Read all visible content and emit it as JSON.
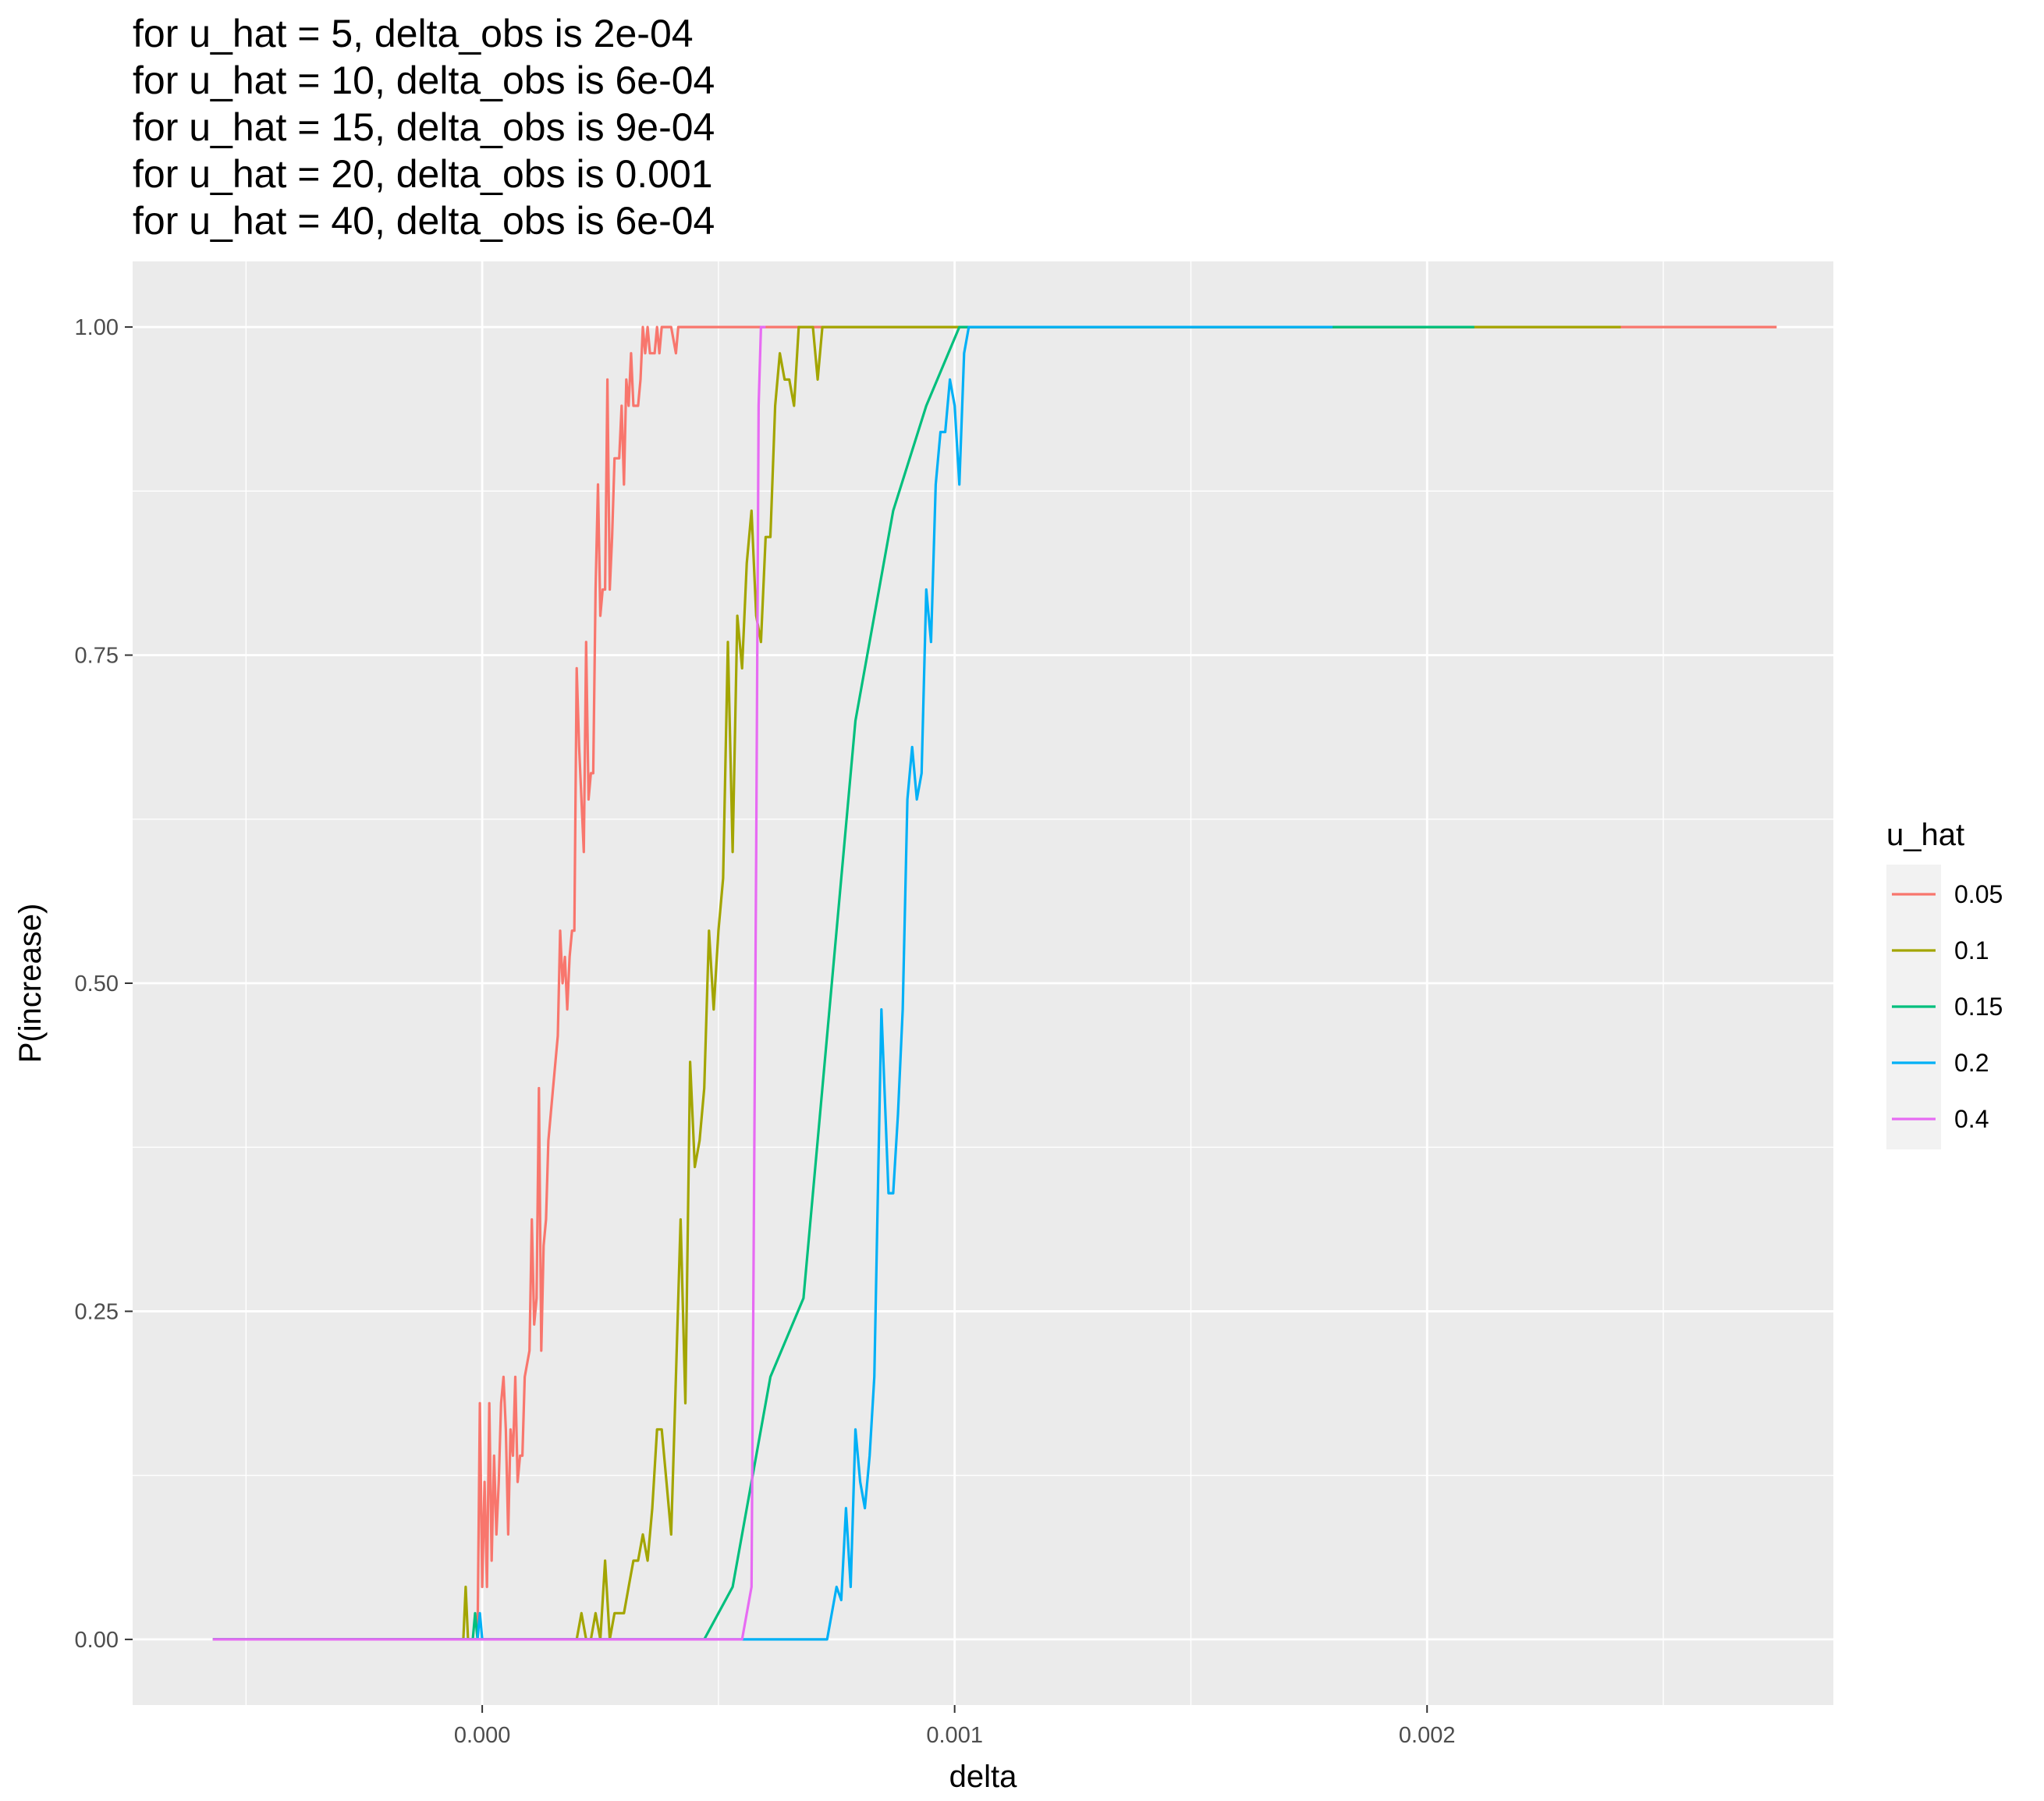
{
  "chart_data": {
    "type": "line",
    "title_lines": [
      "for u_hat = 5,   delta_obs is 2e-04",
      "for u_hat = 10, delta_obs is 6e-04",
      "for u_hat = 15, delta_obs is 9e-04",
      "for u_hat = 20, delta_obs is 0.001",
      "for u_hat = 40, delta_obs is 6e-04"
    ],
    "xlabel": "delta",
    "ylabel": "P(increase)",
    "xlim": [
      -0.00074,
      0.00286
    ],
    "ylim": [
      -0.05,
      1.05
    ],
    "x_ticks": [
      0.0,
      0.001,
      0.002
    ],
    "x_tick_labels": [
      "0.000",
      "0.001",
      "0.002"
    ],
    "y_ticks": [
      0.0,
      0.25,
      0.5,
      0.75,
      1.0
    ],
    "y_tick_labels": [
      "0.00",
      "0.25",
      "0.50",
      "0.75",
      "1.00"
    ],
    "grid": true,
    "legend_title": "u_hat",
    "legend_position": "right",
    "series": [
      {
        "name": "0.05",
        "color": "#F8766D",
        "points": [
          [
            -0.00057,
            0.0
          ],
          [
            -1e-05,
            0.0
          ],
          [
            -5e-06,
            0.18
          ],
          [
            0.0,
            0.04
          ],
          [
            5e-06,
            0.12
          ],
          [
            1e-05,
            0.04
          ],
          [
            1.5e-05,
            0.18
          ],
          [
            2e-05,
            0.06
          ],
          [
            2.5e-05,
            0.14
          ],
          [
            3e-05,
            0.08
          ],
          [
            3.5e-05,
            0.12
          ],
          [
            4e-05,
            0.18
          ],
          [
            4.5e-05,
            0.2
          ],
          [
            5e-05,
            0.16
          ],
          [
            5.5e-05,
            0.08
          ],
          [
            6e-05,
            0.16
          ],
          [
            6.5e-05,
            0.14
          ],
          [
            7e-05,
            0.2
          ],
          [
            7.5e-05,
            0.12
          ],
          [
            8e-05,
            0.14
          ],
          [
            8.5e-05,
            0.14
          ],
          [
            9e-05,
            0.2
          ],
          [
            0.0001,
            0.22
          ],
          [
            0.000105,
            0.32
          ],
          [
            0.00011,
            0.24
          ],
          [
            0.000115,
            0.26
          ],
          [
            0.00012,
            0.42
          ],
          [
            0.000125,
            0.22
          ],
          [
            0.00013,
            0.3
          ],
          [
            0.000135,
            0.32
          ],
          [
            0.00014,
            0.38
          ],
          [
            0.00015,
            0.42
          ],
          [
            0.00016,
            0.46
          ],
          [
            0.000165,
            0.54
          ],
          [
            0.00017,
            0.5
          ],
          [
            0.000175,
            0.52
          ],
          [
            0.00018,
            0.48
          ],
          [
            0.000185,
            0.52
          ],
          [
            0.00019,
            0.54
          ],
          [
            0.000195,
            0.54
          ],
          [
            0.0002,
            0.74
          ],
          [
            0.000205,
            0.68
          ],
          [
            0.00021,
            0.64
          ],
          [
            0.000215,
            0.6
          ],
          [
            0.00022,
            0.76
          ],
          [
            0.000225,
            0.64
          ],
          [
            0.00023,
            0.66
          ],
          [
            0.000235,
            0.66
          ],
          [
            0.00024,
            0.8
          ],
          [
            0.000245,
            0.88
          ],
          [
            0.00025,
            0.78
          ],
          [
            0.000255,
            0.8
          ],
          [
            0.00026,
            0.8
          ],
          [
            0.000265,
            0.96
          ],
          [
            0.00027,
            0.8
          ],
          [
            0.000275,
            0.84
          ],
          [
            0.00028,
            0.9
          ],
          [
            0.000285,
            0.9
          ],
          [
            0.00029,
            0.9
          ],
          [
            0.000295,
            0.94
          ],
          [
            0.0003,
            0.88
          ],
          [
            0.000305,
            0.96
          ],
          [
            0.00031,
            0.94
          ],
          [
            0.000315,
            0.98
          ],
          [
            0.00032,
            0.94
          ],
          [
            0.000325,
            0.94
          ],
          [
            0.00033,
            0.94
          ],
          [
            0.000335,
            0.96
          ],
          [
            0.00034,
            1.0
          ],
          [
            0.000345,
            0.98
          ],
          [
            0.00035,
            1.0
          ],
          [
            0.000355,
            0.98
          ],
          [
            0.00036,
            0.98
          ],
          [
            0.000365,
            0.98
          ],
          [
            0.00037,
            1.0
          ],
          [
            0.000375,
            0.98
          ],
          [
            0.00038,
            1.0
          ],
          [
            0.000385,
            1.0
          ],
          [
            0.00039,
            1.0
          ],
          [
            0.0004,
            1.0
          ],
          [
            0.00041,
            0.98
          ],
          [
            0.000415,
            1.0
          ],
          [
            0.00042,
            1.0
          ],
          [
            0.00274,
            1.0
          ]
        ]
      },
      {
        "name": "0.1",
        "color": "#A3A500",
        "points": [
          [
            -0.00057,
            0.0
          ],
          [
            -4e-05,
            0.0
          ],
          [
            -3.5e-05,
            0.04
          ],
          [
            -3e-05,
            0.0
          ],
          [
            0.0002,
            0.0
          ],
          [
            0.00021,
            0.02
          ],
          [
            0.00022,
            0.0
          ],
          [
            0.00023,
            0.0
          ],
          [
            0.00024,
            0.02
          ],
          [
            0.00025,
            0.0
          ],
          [
            0.00026,
            0.06
          ],
          [
            0.00027,
            0.0
          ],
          [
            0.00028,
            0.02
          ],
          [
            0.0003,
            0.02
          ],
          [
            0.00031,
            0.04
          ],
          [
            0.00032,
            0.06
          ],
          [
            0.00033,
            0.06
          ],
          [
            0.00034,
            0.08
          ],
          [
            0.00035,
            0.06
          ],
          [
            0.00036,
            0.1
          ],
          [
            0.00037,
            0.16
          ],
          [
            0.00038,
            0.16
          ],
          [
            0.00039,
            0.12
          ],
          [
            0.0004,
            0.08
          ],
          [
            0.00041,
            0.2
          ],
          [
            0.00042,
            0.32
          ],
          [
            0.00043,
            0.18
          ],
          [
            0.00044,
            0.44
          ],
          [
            0.00045,
            0.36
          ],
          [
            0.00046,
            0.38
          ],
          [
            0.00047,
            0.42
          ],
          [
            0.00048,
            0.54
          ],
          [
            0.00049,
            0.48
          ],
          [
            0.0005,
            0.54
          ],
          [
            0.00051,
            0.58
          ],
          [
            0.00052,
            0.76
          ],
          [
            0.00053,
            0.6
          ],
          [
            0.00054,
            0.78
          ],
          [
            0.00055,
            0.74
          ],
          [
            0.00056,
            0.82
          ],
          [
            0.00057,
            0.86
          ],
          [
            0.00058,
            0.78
          ],
          [
            0.00059,
            0.76
          ],
          [
            0.0006,
            0.84
          ],
          [
            0.00061,
            0.84
          ],
          [
            0.00062,
            0.94
          ],
          [
            0.00063,
            0.98
          ],
          [
            0.00064,
            0.96
          ],
          [
            0.00065,
            0.96
          ],
          [
            0.00066,
            0.94
          ],
          [
            0.00067,
            1.0
          ],
          [
            0.00068,
            1.0
          ],
          [
            0.00069,
            1.0
          ],
          [
            0.0007,
            1.0
          ],
          [
            0.00071,
            0.96
          ],
          [
            0.00072,
            1.0
          ],
          [
            0.00073,
            1.0
          ],
          [
            0.00241,
            1.0
          ]
        ]
      },
      {
        "name": "0.15",
        "color": "#00BF7D",
        "points": [
          [
            -0.00057,
            0.0
          ],
          [
            -2e-05,
            0.0
          ],
          [
            -1.5e-05,
            0.02
          ],
          [
            -1e-05,
            0.0
          ],
          [
            0.00047,
            0.0
          ],
          [
            0.00053,
            0.04
          ],
          [
            0.00061,
            0.2
          ],
          [
            0.00068,
            0.26
          ],
          [
            0.00079,
            0.7
          ],
          [
            0.00087,
            0.86
          ],
          [
            0.00094,
            0.94
          ],
          [
            0.00101,
            1.0
          ],
          [
            0.0021,
            1.0
          ]
        ]
      },
      {
        "name": "0.2",
        "color": "#00B0F6",
        "points": [
          [
            -0.00057,
            0.0
          ],
          [
            -1e-05,
            0.0
          ],
          [
            -5e-06,
            0.02
          ],
          [
            0.0,
            0.0
          ],
          [
            0.00073,
            0.0
          ],
          [
            0.00075,
            0.04
          ],
          [
            0.00076,
            0.03
          ],
          [
            0.00077,
            0.1
          ],
          [
            0.00078,
            0.04
          ],
          [
            0.00079,
            0.16
          ],
          [
            0.0008,
            0.12
          ],
          [
            0.00081,
            0.1
          ],
          [
            0.00082,
            0.14
          ],
          [
            0.00083,
            0.2
          ],
          [
            0.000845,
            0.48
          ],
          [
            0.00086,
            0.34
          ],
          [
            0.00087,
            0.34
          ],
          [
            0.00088,
            0.4
          ],
          [
            0.00089,
            0.48
          ],
          [
            0.0009,
            0.64
          ],
          [
            0.00091,
            0.68
          ],
          [
            0.00092,
            0.64
          ],
          [
            0.00093,
            0.66
          ],
          [
            0.00094,
            0.8
          ],
          [
            0.00095,
            0.76
          ],
          [
            0.00096,
            0.88
          ],
          [
            0.00097,
            0.92
          ],
          [
            0.00098,
            0.92
          ],
          [
            0.00099,
            0.96
          ],
          [
            0.001,
            0.94
          ],
          [
            0.00101,
            0.88
          ],
          [
            0.00102,
            0.98
          ],
          [
            0.00103,
            1.0
          ],
          [
            0.0018,
            1.0
          ]
        ]
      },
      {
        "name": "0.4",
        "color": "#E76BF3",
        "points": [
          [
            -0.00057,
            0.0
          ],
          [
            0.00055,
            0.0
          ],
          [
            0.00057,
            0.04
          ],
          [
            0.00058,
            0.6
          ],
          [
            0.000585,
            0.94
          ],
          [
            0.00059,
            1.0
          ],
          [
            0.0006,
            1.0
          ]
        ]
      }
    ]
  }
}
